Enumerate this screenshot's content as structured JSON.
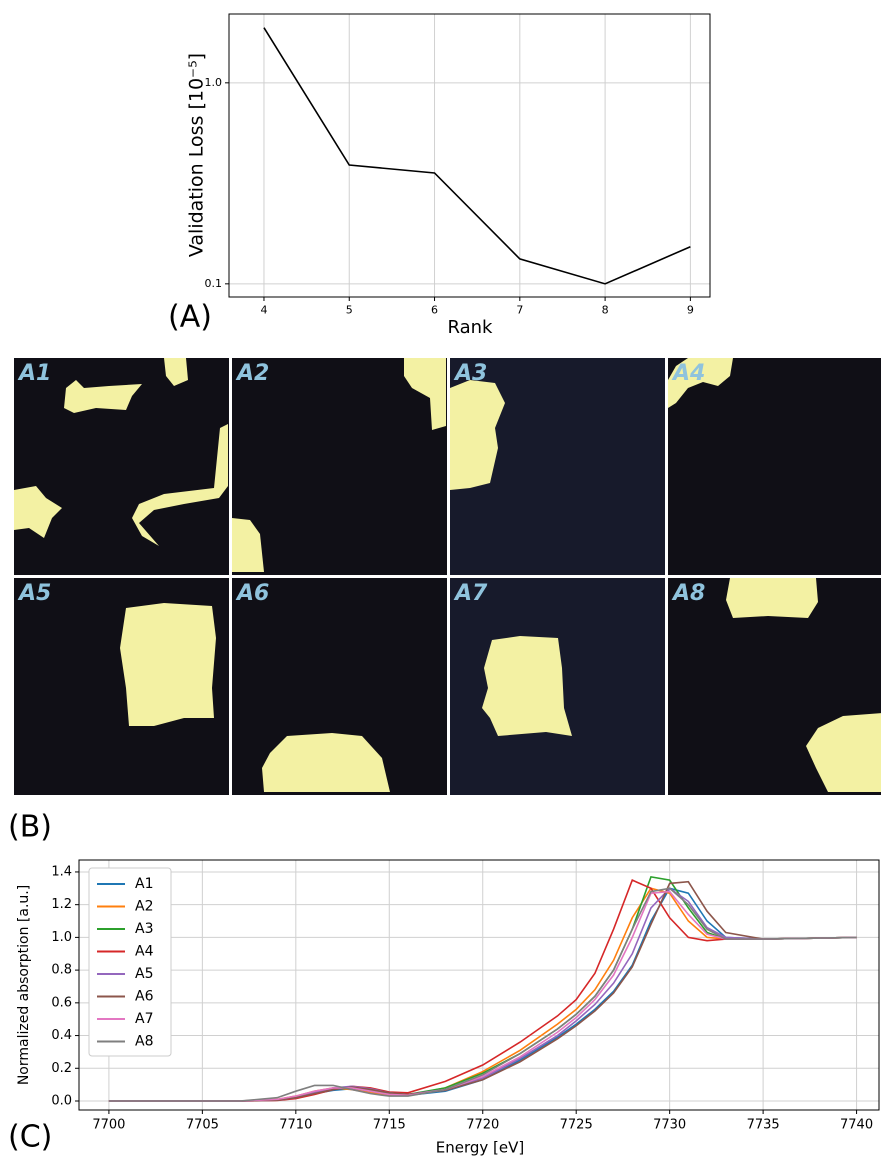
{
  "chart_data": [
    {
      "type": "line",
      "label": "(A)",
      "xlabel": "Rank",
      "ylabel": "Validation Loss [10⁻⁵]",
      "x": [
        4,
        5,
        6,
        7,
        8,
        9
      ],
      "values": [
        1.88,
        0.39,
        0.356,
        0.133,
        0.1,
        0.153
      ],
      "color": "#000000",
      "log_y": true,
      "grid": true,
      "xlim": [
        3.59,
        9.23
      ],
      "xticks": [
        4,
        5,
        6,
        7,
        8,
        9
      ],
      "ylim": [
        0.086,
        2.2
      ],
      "yticks": [
        0.1,
        {
          "value": 1.0,
          "label": "1.0"
        }
      ]
    },
    {
      "type": "image",
      "label": "(B)",
      "panels": [
        "A1",
        "A2",
        "A3",
        "A4",
        "A5",
        "A6",
        "A7",
        "A8"
      ]
    },
    {
      "type": "line",
      "label": "(C)",
      "xlabel": "Energy [eV]",
      "ylabel": "Normalized absorption [a.u.]",
      "grid": true,
      "legend": "upper left",
      "xlim": [
        7698.4,
        7741.2
      ],
      "xticks": [
        7700,
        7705,
        7710,
        7715,
        7720,
        7725,
        7730,
        7735,
        7740
      ],
      "ylim": [
        -0.055,
        1.473
      ],
      "yticks": [
        {
          "value": 0.0,
          "label": "0.0"
        },
        0.2,
        0.4,
        0.6,
        0.8,
        {
          "value": 1.0,
          "label": "1.0"
        },
        1.2,
        1.4
      ],
      "x": [
        7700,
        7705,
        7707,
        7709,
        7710,
        7711,
        7712,
        7713,
        7714,
        7715,
        7716,
        7718,
        7720,
        7722,
        7724,
        7725,
        7726,
        7727,
        7728,
        7729,
        7730,
        7731,
        7732,
        7733,
        7735,
        7740
      ],
      "series": [
        {
          "name": "A1",
          "color": "#1f77b4",
          "values": [
            0,
            0,
            0,
            0.005,
            0.02,
            0.045,
            0.065,
            0.075,
            0.06,
            0.04,
            0.035,
            0.06,
            0.13,
            0.25,
            0.39,
            0.47,
            0.56,
            0.67,
            0.83,
            1.1,
            1.3,
            1.27,
            1.1,
            1.0,
            0.99,
            1.0
          ]
        },
        {
          "name": "A2",
          "color": "#ff7f0e",
          "values": [
            0,
            0,
            0,
            0.01,
            0.03,
            0.06,
            0.08,
            0.07,
            0.05,
            0.035,
            0.035,
            0.08,
            0.18,
            0.31,
            0.47,
            0.56,
            0.68,
            0.86,
            1.12,
            1.3,
            1.27,
            1.1,
            1.0,
            0.99,
            0.99,
            1.0
          ]
        },
        {
          "name": "A3",
          "color": "#2ca02c",
          "values": [
            0,
            0,
            0,
            0.005,
            0.02,
            0.05,
            0.075,
            0.08,
            0.065,
            0.045,
            0.04,
            0.08,
            0.17,
            0.29,
            0.44,
            0.53,
            0.64,
            0.8,
            1.05,
            1.37,
            1.35,
            1.18,
            1.03,
            0.99,
            0.99,
            1.0
          ]
        },
        {
          "name": "A4",
          "color": "#d62728",
          "values": [
            0,
            0,
            0,
            0.003,
            0.015,
            0.04,
            0.07,
            0.09,
            0.08,
            0.055,
            0.05,
            0.12,
            0.22,
            0.36,
            0.52,
            0.62,
            0.78,
            1.05,
            1.35,
            1.3,
            1.12,
            1.0,
            0.98,
            0.99,
            0.99,
            1.0
          ]
        },
        {
          "name": "A5",
          "color": "#9467bd",
          "values": [
            0,
            0,
            0,
            0.005,
            0.02,
            0.05,
            0.08,
            0.09,
            0.075,
            0.05,
            0.04,
            0.07,
            0.14,
            0.26,
            0.4,
            0.49,
            0.59,
            0.72,
            0.9,
            1.18,
            1.3,
            1.22,
            1.06,
            1.0,
            0.99,
            1.0
          ]
        },
        {
          "name": "A6",
          "color": "#8c564b",
          "values": [
            0,
            0,
            0,
            0.005,
            0.02,
            0.045,
            0.07,
            0.085,
            0.07,
            0.05,
            0.04,
            0.065,
            0.13,
            0.24,
            0.38,
            0.46,
            0.55,
            0.66,
            0.82,
            1.08,
            1.33,
            1.34,
            1.16,
            1.03,
            0.99,
            1.0
          ]
        },
        {
          "name": "A7",
          "color": "#e377c2",
          "values": [
            0,
            0,
            0,
            0.01,
            0.03,
            0.06,
            0.08,
            0.08,
            0.06,
            0.04,
            0.035,
            0.07,
            0.15,
            0.27,
            0.42,
            0.51,
            0.62,
            0.77,
            1.0,
            1.27,
            1.28,
            1.14,
            1.02,
            0.99,
            0.99,
            1.0
          ]
        },
        {
          "name": "A8",
          "color": "#7f7f7f",
          "values": [
            0,
            0,
            0,
            0.02,
            0.06,
            0.095,
            0.095,
            0.07,
            0.045,
            0.03,
            0.03,
            0.07,
            0.16,
            0.29,
            0.44,
            0.53,
            0.64,
            0.8,
            1.05,
            1.28,
            1.3,
            1.2,
            1.05,
            0.99,
            0.99,
            1.0
          ]
        }
      ]
    }
  ]
}
